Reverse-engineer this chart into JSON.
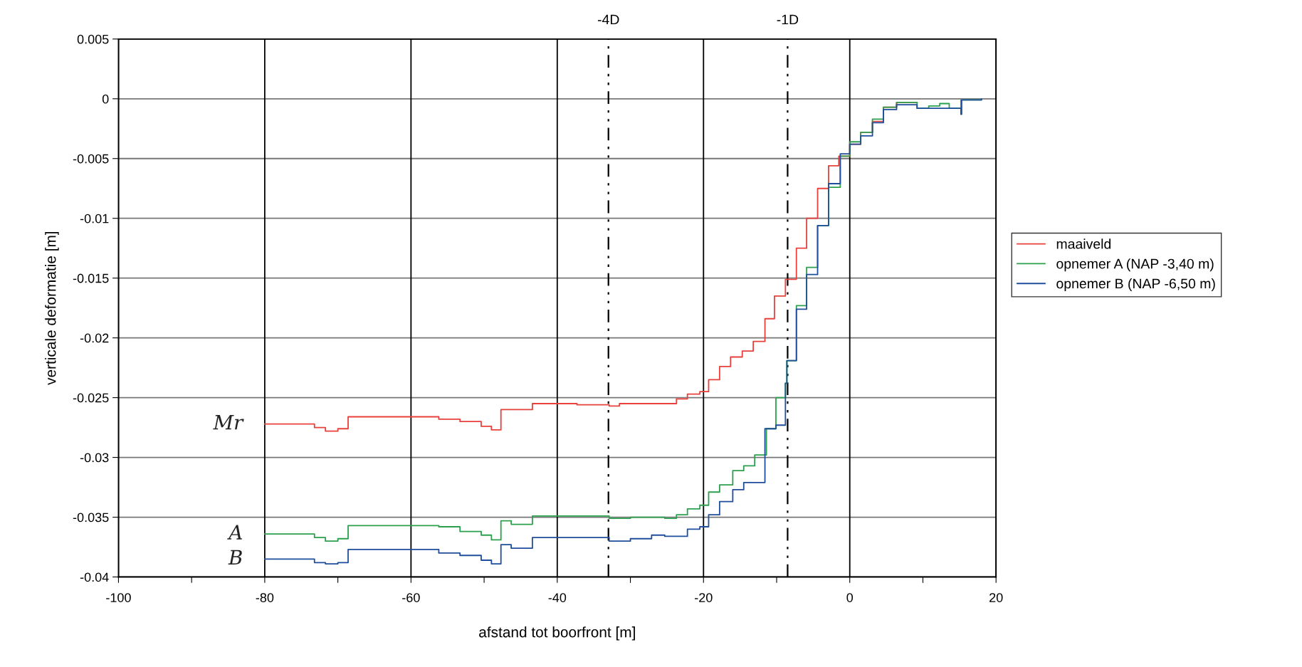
{
  "chart_data": {
    "type": "step",
    "xlabel": "afstand tot boorfront [m]",
    "ylabel": "verticale deformatie [m]",
    "xlim": [
      -100,
      20
    ],
    "ylim": [
      -0.04,
      0.005
    ],
    "xticks": [
      -100,
      {
        "value": -90,
        "label": null
      },
      -80,
      {
        "value": -70,
        "label": null
      },
      -60,
      {
        "value": -50,
        "label": null
      },
      -40,
      {
        "value": -30,
        "label": null
      },
      -20,
      {
        "value": -10,
        "label": null
      },
      0,
      {
        "value": 10,
        "label": null
      },
      20
    ],
    "yticks": [
      -0.04,
      -0.035,
      -0.03,
      -0.025,
      -0.02,
      -0.015,
      -0.01,
      -0.005,
      0,
      0.005
    ],
    "grid": true,
    "legend": "right",
    "ref_lines": [
      {
        "axis": "x",
        "value": -33,
        "label": "-4D",
        "color": "#000000",
        "line_style": "dashdot"
      },
      {
        "axis": "x",
        "value": -8.5,
        "label": "-1D",
        "color": "#000000",
        "line_style": "dashdot"
      }
    ],
    "annotations": [
      "Mr",
      "A",
      "B"
    ],
    "series": [
      {
        "name": "maaiveld",
        "color": "#e8413c",
        "x": [
          -80,
          -73.2,
          -71.7,
          -70,
          -68.6,
          -56.2,
          -53.3,
          -50.4,
          -49,
          -47.7,
          -43.4,
          -37.3,
          -32.9,
          -31.5,
          -25.3,
          -23.7,
          -22.2,
          -20.5,
          -19.3,
          -17.8,
          -16.3,
          -14.7,
          -13.2,
          -11.6,
          -10.3,
          -8.8,
          -7.3,
          -5.9,
          -4.4,
          -2.9,
          -1.5,
          0,
          1.5,
          3.1,
          4.6,
          6.4,
          9.2
        ],
        "values": [
          -0.0272,
          -0.0275,
          -0.0278,
          -0.0276,
          -0.0266,
          -0.0268,
          -0.027,
          -0.0274,
          -0.0277,
          -0.026,
          -0.0255,
          -0.0256,
          -0.0257,
          -0.0255,
          -0.0255,
          -0.0251,
          -0.0247,
          -0.0245,
          -0.0235,
          -0.0224,
          -0.0216,
          -0.0211,
          -0.0203,
          -0.0184,
          -0.0165,
          -0.0151,
          -0.0125,
          -0.01,
          -0.0075,
          -0.0056,
          -0.0048,
          -0.0038,
          -0.0028,
          -0.0019,
          -0.0007,
          -0.0003,
          -0.0003
        ]
      },
      {
        "name": "opnemer A (NAP -3,40 m)",
        "color": "#2ca04c",
        "x": [
          -80,
          -73.2,
          -71.7,
          -70,
          -68.6,
          -56.2,
          -53.3,
          -50.4,
          -49,
          -47.7,
          -46.3,
          -43.4,
          -32.9,
          -30,
          -25.3,
          -23.7,
          -22.2,
          -20.5,
          -19.3,
          -17.8,
          -16.0,
          -14.5,
          -13.0,
          -11.4,
          -10.1,
          -8.8,
          -8.6,
          -7.3,
          -5.9,
          -4.4,
          -2.9,
          -1.3,
          0,
          1.5,
          3.1,
          4.6,
          6.4,
          9.2,
          10.8,
          12.3,
          13.6,
          15.2,
          18
        ],
        "values": [
          -0.0364,
          -0.0367,
          -0.037,
          -0.0368,
          -0.0357,
          -0.0358,
          -0.0362,
          -0.0365,
          -0.0369,
          -0.0353,
          -0.0356,
          -0.0349,
          -0.0351,
          -0.035,
          -0.0351,
          -0.0348,
          -0.0343,
          -0.034,
          -0.0329,
          -0.0323,
          -0.0311,
          -0.0307,
          -0.0298,
          -0.0276,
          -0.025,
          -0.0238,
          -0.0219,
          -0.0173,
          -0.0141,
          -0.0106,
          -0.0074,
          -0.0048,
          -0.0036,
          -0.0028,
          -0.0017,
          -0.0007,
          -0.0003,
          -0.0008,
          -0.0006,
          -0.0004,
          -0.0008,
          -0.0001,
          0
        ]
      },
      {
        "name": "opnemer B (NAP -6,50 m)",
        "color": "#1f4e9c",
        "x": [
          -80,
          -73.2,
          -71.7,
          -70,
          -68.6,
          -56.2,
          -53.3,
          -50.4,
          -49,
          -47.7,
          -46.3,
          -43.4,
          -32.9,
          -30,
          -27.1,
          -25.3,
          -22.2,
          -20.5,
          -19.3,
          -17.8,
          -16.0,
          -14.5,
          -11.6,
          -10.1,
          -8.8,
          -8.6,
          -7.3,
          -5.9,
          -4.4,
          -2.9,
          -1.3,
          0,
          1.5,
          3.1,
          4.6,
          6.4,
          9.2,
          15.2,
          15.3,
          18
        ],
        "values": [
          -0.0385,
          -0.0388,
          -0.0389,
          -0.0388,
          -0.0377,
          -0.038,
          -0.0382,
          -0.0386,
          -0.0389,
          -0.0373,
          -0.0376,
          -0.0367,
          -0.037,
          -0.0368,
          -0.0365,
          -0.0366,
          -0.036,
          -0.0358,
          -0.0348,
          -0.0337,
          -0.0327,
          -0.0321,
          -0.0276,
          -0.0273,
          -0.0238,
          -0.0219,
          -0.0176,
          -0.0147,
          -0.0106,
          -0.0071,
          -0.0046,
          -0.0038,
          -0.0031,
          -0.002,
          -0.0009,
          -0.0005,
          -0.0008,
          -0.0013,
          -0.0001,
          0
        ]
      }
    ]
  }
}
